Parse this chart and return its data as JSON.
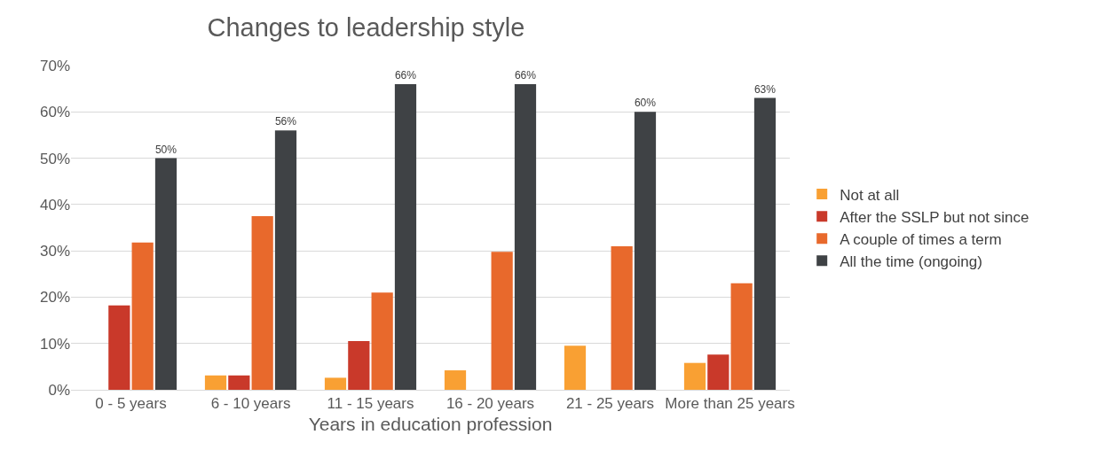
{
  "chart_data": {
    "type": "bar",
    "title": "Changes to leadership style",
    "xlabel": "Years in education profession",
    "categories": [
      "0 - 5 years",
      "6 - 10 years",
      "11 - 15 years",
      "16 - 20 years",
      "21 - 25 years",
      "More than 25 years"
    ],
    "series": [
      {
        "name": "Not at all",
        "color": "#f9a033",
        "values": [
          null,
          3.1,
          2.6,
          4.2,
          9.5,
          5.8
        ]
      },
      {
        "name": "After the SSLP but not since",
        "color": "#c9392a",
        "values": [
          18.2,
          3.1,
          10.5,
          null,
          null,
          7.6
        ]
      },
      {
        "name": "A couple of times a term",
        "color": "#e8692c",
        "values": [
          31.8,
          37.5,
          21,
          29.8,
          31,
          23
        ]
      },
      {
        "name": "All the time (ongoing)",
        "color": "#3f4245",
        "values": [
          50,
          56,
          66,
          66,
          60,
          63
        ],
        "value_labels": [
          "50%",
          "56%",
          "66%",
          "66%",
          "60%",
          "63%"
        ]
      }
    ],
    "ylim": [
      0,
      70
    ],
    "yticks": [
      {
        "value": 0,
        "label": "0%"
      },
      {
        "value": 10,
        "label": "10%"
      },
      {
        "value": 20,
        "label": "20%"
      },
      {
        "value": 30,
        "label": "30%"
      },
      {
        "value": 40,
        "label": "40%"
      },
      {
        "value": 50,
        "label": "50%"
      },
      {
        "value": 60,
        "label": "60%"
      },
      {
        "value": 70,
        "label": "70%"
      }
    ],
    "grid": "y",
    "legend": "right"
  }
}
